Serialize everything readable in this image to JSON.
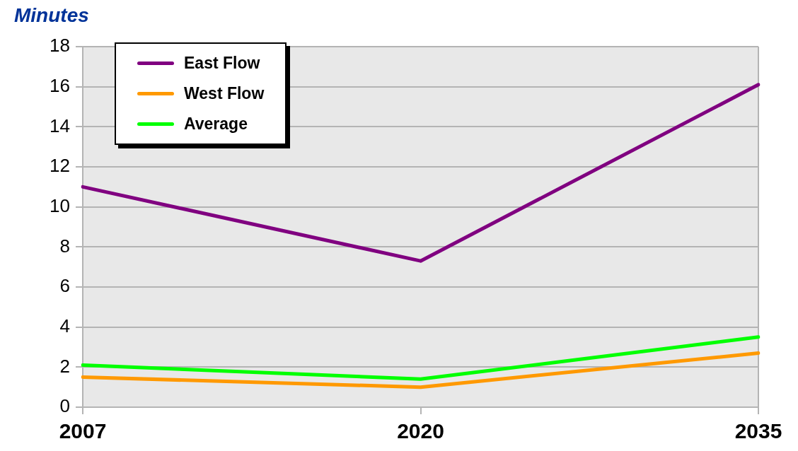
{
  "chart_data": {
    "type": "line",
    "ylabel": "Minutes",
    "categories": [
      "2007",
      "2020",
      "2035"
    ],
    "series": [
      {
        "name": "East Flow",
        "color": "#800080",
        "values": [
          11,
          7.3,
          16.1
        ]
      },
      {
        "name": "West Flow",
        "color": "#ff9900",
        "values": [
          1.5,
          1.0,
          2.7
        ]
      },
      {
        "name": "Average",
        "color": "#00ff00",
        "values": [
          2.1,
          1.4,
          3.5
        ]
      }
    ],
    "ylim": [
      0,
      18
    ],
    "yticks": [
      0,
      2,
      4,
      6,
      8,
      10,
      12,
      14,
      16,
      18
    ],
    "grid": "y",
    "legend": "top left",
    "marker": "none",
    "line_style": "solid"
  }
}
